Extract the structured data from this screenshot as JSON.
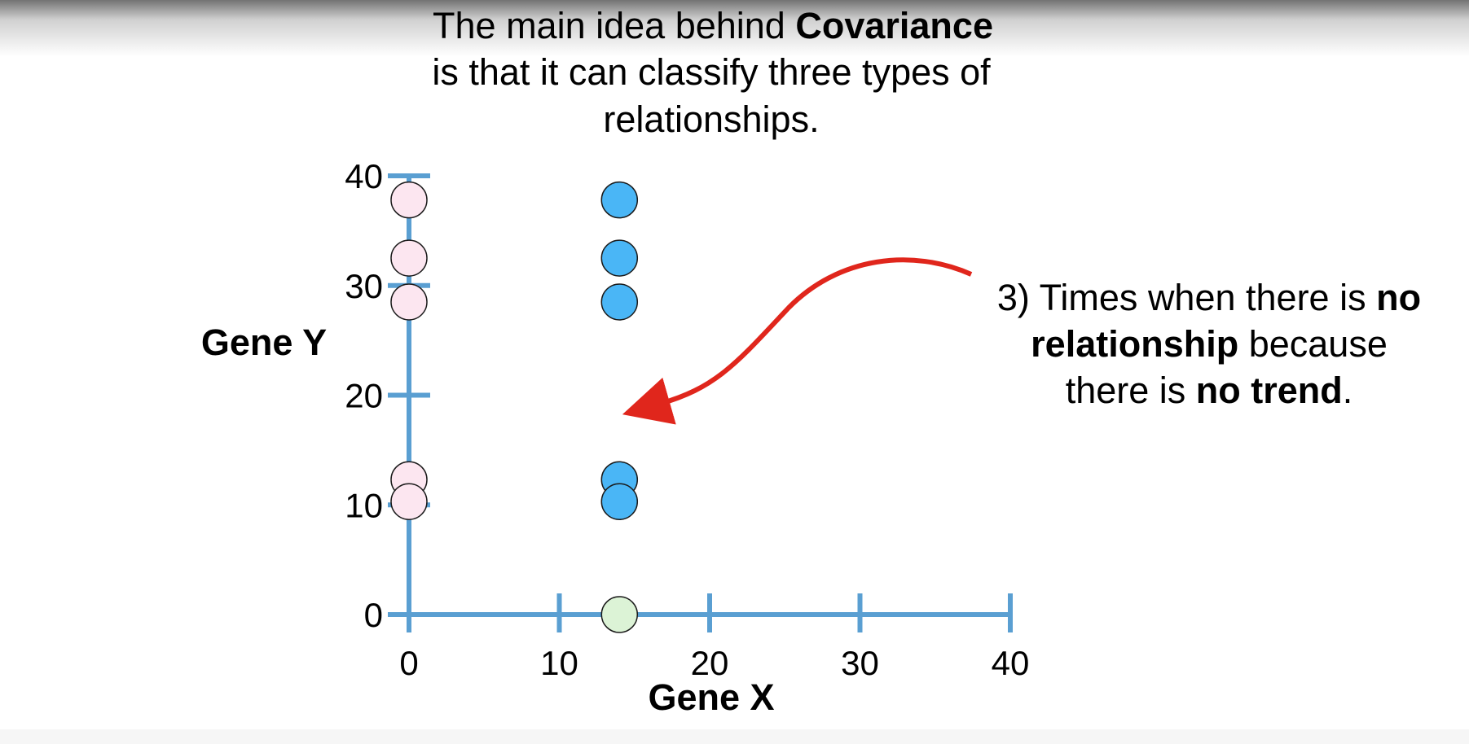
{
  "title": {
    "line1_pre": "The main idea behind ",
    "line1_bold": "Covariance",
    "line2": "is that it can classify three types of",
    "line3": "relationships."
  },
  "annotation": {
    "line1_pre": "3) Times when there is ",
    "line1_bold": "no",
    "line2_bold": "relationship",
    "line2_post": " because",
    "line3_pre": "there is ",
    "line3_bold": "no trend",
    "line3_post": "."
  },
  "colors": {
    "axis": "#5a9fd2",
    "arrow": "#e0261c",
    "outline": "#1a1a1a"
  },
  "chart_data": {
    "type": "scatter",
    "xlabel": "Gene X",
    "ylabel": "Gene Y",
    "xlim": [
      0,
      40
    ],
    "ylim": [
      0,
      40
    ],
    "xticks": [
      0,
      10,
      20,
      30,
      40
    ],
    "yticks": [
      0,
      10,
      20,
      30,
      40
    ],
    "series": [
      {
        "color": "#fce6f0",
        "points": [
          {
            "x": 0,
            "y": 37.8
          },
          {
            "x": 0,
            "y": 32.5
          },
          {
            "x": 0,
            "y": 28.5
          },
          {
            "x": 0,
            "y": 12.3
          },
          {
            "x": 0,
            "y": 10.3
          }
        ]
      },
      {
        "color": "#4ab6f6",
        "points": [
          {
            "x": 14,
            "y": 37.8
          },
          {
            "x": 14,
            "y": 32.5
          },
          {
            "x": 14,
            "y": 28.5
          },
          {
            "x": 14,
            "y": 12.3
          },
          {
            "x": 14,
            "y": 10.3
          }
        ]
      },
      {
        "color": "#dcf3d6",
        "points": [
          {
            "x": 14,
            "y": 0
          }
        ]
      }
    ]
  }
}
